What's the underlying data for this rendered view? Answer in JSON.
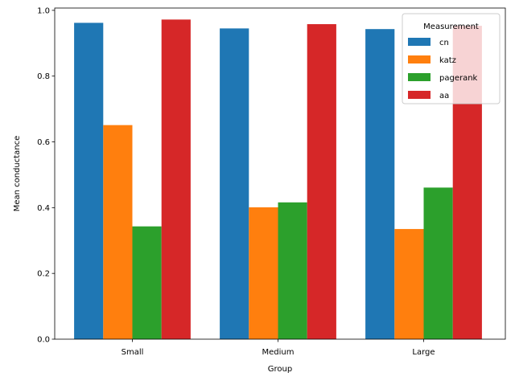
{
  "chart_data": {
    "type": "bar",
    "title": "",
    "xlabel": "Group",
    "ylabel": "Mean conductance",
    "categories": [
      "Small",
      "Medium",
      "Large"
    ],
    "ylim": [
      0,
      1.0
    ],
    "yticks": [
      "0.0",
      "0.2",
      "0.4",
      "0.6",
      "0.8",
      "1.0"
    ],
    "ytick_values": [
      0.0,
      0.2,
      0.4,
      0.6,
      0.8,
      1.0
    ],
    "grid": false,
    "legend": {
      "title": "Measurement",
      "placement": "top-right"
    },
    "series": [
      {
        "name": "cn",
        "color": "#1f77b4",
        "values": [
          0.962,
          0.945,
          0.943
        ]
      },
      {
        "name": "katz",
        "color": "#ff7f0e",
        "values": [
          0.651,
          0.401,
          0.335
        ]
      },
      {
        "name": "pagerank",
        "color": "#2ca02c",
        "values": [
          0.343,
          0.416,
          0.461
        ]
      },
      {
        "name": "aa",
        "color": "#d62728",
        "values": [
          0.972,
          0.958,
          0.953
        ]
      }
    ]
  }
}
